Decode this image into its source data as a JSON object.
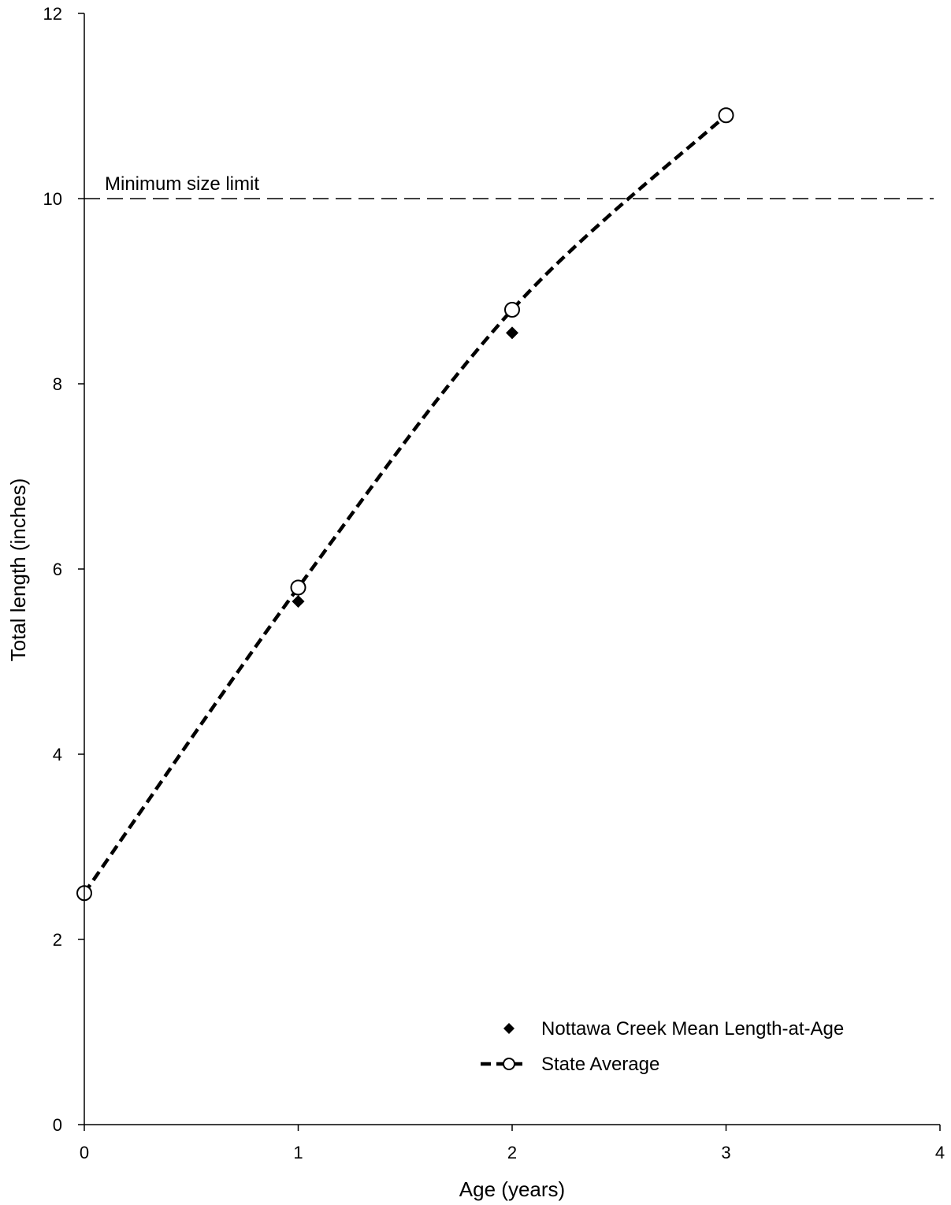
{
  "chart_data": {
    "type": "scatter",
    "title": "",
    "xlabel": "Age (years)",
    "ylabel": "Total length (inches)",
    "xlim": [
      0,
      4
    ],
    "ylim": [
      0,
      12
    ],
    "x_ticks": [
      0,
      1,
      2,
      3,
      4
    ],
    "y_ticks": [
      0,
      2,
      4,
      6,
      8,
      10,
      12
    ],
    "grid": false,
    "legend_position": "bottom-right",
    "series": [
      {
        "name": "Nottawa Creek Mean Length-at-Age",
        "style": "markers",
        "marker": "filled-diamond",
        "color": "#000000",
        "x": [
          1,
          2
        ],
        "y": [
          5.65,
          8.55
        ]
      },
      {
        "name": "State Average",
        "style": "dashed-line-with-markers",
        "marker": "open-circle",
        "color": "#000000",
        "x": [
          0,
          1,
          2,
          3
        ],
        "y": [
          2.5,
          5.8,
          8.8,
          10.9
        ]
      }
    ],
    "reference_lines": [
      {
        "axis": "y",
        "value": 10,
        "label": "Minimum size limit",
        "style": "dashed"
      }
    ]
  }
}
